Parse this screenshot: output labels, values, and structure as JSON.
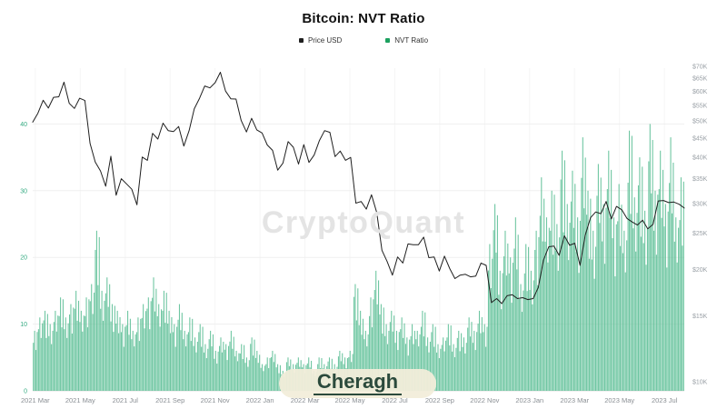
{
  "header": {
    "title": "Bitcoin: NVT Ratio"
  },
  "legend": {
    "items": [
      {
        "label": "Price USD",
        "color": "#1f1f1f"
      },
      {
        "label": "NVT Ratio",
        "color": "#1ca15f"
      }
    ]
  },
  "watermark": {
    "text": "CryptoQuant"
  },
  "logo": {
    "text": "Cheragh"
  },
  "colors": {
    "bar": "#57bd92",
    "line": "#1f1f1f",
    "left_axis_text": "#35ab82",
    "right_axis_text": "#9aa0a6",
    "bottom_axis_text": "#8a8f94",
    "gridline": "#efefef",
    "vertical_gridline": "#f5f5f5",
    "baseline": "#e2e2e2"
  },
  "chart_data": {
    "type": "combo",
    "title": "Bitcoin: NVT Ratio",
    "x_start": "2021-03-01",
    "x_interval_days": 7,
    "x_ticks": [
      "2021 Mar",
      "2021 May",
      "2021 Jul",
      "2021 Sep",
      "2021 Nov",
      "2022 Jan",
      "2022 Mar",
      "2022 May",
      "2022 Jul",
      "2022 Sep",
      "2022 Nov",
      "2023 Jan",
      "2023 Mar",
      "2023 May",
      "2023 Jul"
    ],
    "left_axis": {
      "label": "NVT Ratio",
      "scale": "linear",
      "ticks": [
        0,
        10,
        20,
        30,
        40
      ],
      "range": [
        0,
        48.5
      ],
      "grid": true
    },
    "right_axis": {
      "label": "Price USD",
      "scale": "log",
      "tick_labels": [
        "$70K",
        "$65K",
        "$60K",
        "$55K",
        "$50K",
        "$45K",
        "$40K",
        "$35K",
        "$30K",
        "$25K",
        "$20K",
        "$15K",
        "$10K"
      ],
      "tick_values_k": [
        70,
        65,
        60,
        55,
        50,
        45,
        40,
        35,
        30,
        25,
        20,
        15,
        10
      ],
      "range_k": [
        9.4,
        72
      ]
    },
    "legend_position": "top",
    "series": [
      {
        "name": "Price USD",
        "type": "line",
        "axis": "right",
        "color": "#1f1f1f",
        "unit": "USD (thousands)",
        "values": [
          49.6,
          52.4,
          56.8,
          54.1,
          57.8,
          58.0,
          63.5,
          55.7,
          54.0,
          57.5,
          56.7,
          43.5,
          38.8,
          36.7,
          33.4,
          40.2,
          31.6,
          35.0,
          33.9,
          32.8,
          29.8,
          40.0,
          39.2,
          46.3,
          44.7,
          49.3,
          47.1,
          46.8,
          48.3,
          42.8,
          47.1,
          53.9,
          57.5,
          62.0,
          61.3,
          63.3,
          67.5,
          60.1,
          57.3,
          57.2,
          50.1,
          46.7,
          50.8,
          47.3,
          46.4,
          43.1,
          41.7,
          36.9,
          38.5,
          44.0,
          42.5,
          38.3,
          43.2,
          38.7,
          40.5,
          44.3,
          47.1,
          46.6,
          40.1,
          41.5,
          39.2,
          39.9,
          30.1,
          30.4,
          29.0,
          31.7,
          28.4,
          22.5,
          21.0,
          19.3,
          21.6,
          20.8,
          23.4,
          23.3,
          23.3,
          24.4,
          21.5,
          21.6,
          19.8,
          21.7,
          20.1,
          18.9,
          19.3,
          19.4,
          19.1,
          19.2,
          20.8,
          20.5,
          16.3,
          16.7,
          16.2,
          17.0,
          17.1,
          16.7,
          16.8,
          16.6,
          16.7,
          17.9,
          21.2,
          23.0,
          23.1,
          21.8,
          24.6,
          23.2,
          23.5,
          20.5,
          24.7,
          27.5,
          28.5,
          28.2,
          30.4,
          27.3,
          29.5,
          28.9,
          27.4,
          26.8,
          26.3,
          27.1,
          25.7,
          26.4,
          30.5,
          30.6,
          30.2,
          30.3,
          29.9,
          29.2
        ]
      },
      {
        "name": "NVT Ratio",
        "type": "bar",
        "axis": "left",
        "color": "#57bd92",
        "values": [
          9,
          11,
          12,
          10,
          12,
          14,
          11,
          13,
          15,
          12,
          14,
          16,
          24,
          15,
          17,
          13,
          12,
          10,
          12,
          9,
          11,
          13,
          14,
          17,
          13,
          15,
          12,
          10,
          13,
          9,
          11,
          8,
          10,
          7,
          9,
          6,
          8,
          7,
          9,
          6,
          7,
          5,
          8,
          6,
          4,
          5,
          6,
          4,
          3,
          5,
          4,
          5,
          4,
          5,
          3,
          5,
          4,
          5,
          4,
          6,
          5,
          6,
          16,
          12,
          9,
          14,
          18,
          13,
          10,
          12,
          9,
          11,
          8,
          10,
          9,
          12,
          8,
          10,
          7,
          8,
          10,
          7,
          9,
          8,
          11,
          9,
          12,
          10,
          22,
          28,
          18,
          24,
          20,
          26,
          16,
          22,
          18,
          24,
          32,
          26,
          30,
          25,
          36,
          28,
          33,
          26,
          38,
          30,
          24,
          34,
          28,
          36,
          26,
          31,
          24,
          39,
          29,
          35,
          27,
          40,
          30,
          36,
          28,
          38,
          26,
          32
        ]
      }
    ]
  }
}
